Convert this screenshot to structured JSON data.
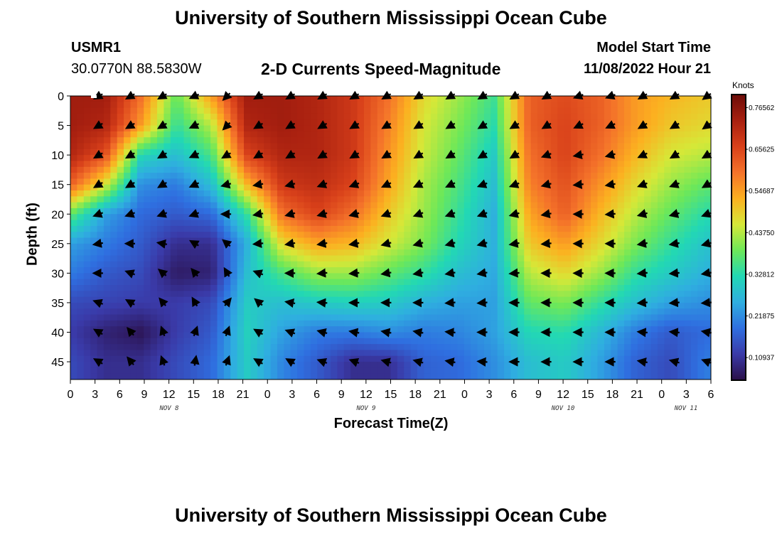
{
  "header": {
    "title": "University of Southern Mississippi Ocean Cube",
    "station_id": "USMR1",
    "coordinates": "30.0770N  88.5830W",
    "subtitle": "2-D Currents Speed-Magnitude",
    "model_start_label": "Model Start Time",
    "model_start_value": "11/08/2022 Hour 21"
  },
  "footer": {
    "title": "University of Southern Mississippi Ocean Cube"
  },
  "colors": {
    "scale": [
      "#2a0f48",
      "#3a3aa8",
      "#2f6fe0",
      "#2faee0",
      "#22d8b4",
      "#6ee858",
      "#d6e838",
      "#fcb020",
      "#f4722a",
      "#d8401a",
      "#a82010",
      "#6c0c08"
    ],
    "arrow": "#000000",
    "marker": "#ffffff"
  },
  "chart_data": {
    "type": "heatmap",
    "title": "2-D Currents Speed-Magnitude",
    "xlabel": "Forecast Time(Z)",
    "ylabel": "Depth (ft)",
    "x_tick_labels": [
      "0",
      "3",
      "6",
      "9",
      "12",
      "15",
      "18",
      "21",
      "0",
      "3",
      "6",
      "9",
      "12",
      "15",
      "18",
      "21",
      "0",
      "3",
      "6",
      "9",
      "12",
      "15",
      "18",
      "21",
      "0",
      "3",
      "6"
    ],
    "x_hours_range": [
      0,
      78
    ],
    "date_labels": [
      {
        "label": "NOV 8",
        "hour": 12
      },
      {
        "label": "NOV 9",
        "hour": 36
      },
      {
        "label": "NOV 10",
        "hour": 60
      },
      {
        "label": "NOV 11",
        "hour": 75
      }
    ],
    "y_ticks": [
      0,
      5,
      10,
      15,
      20,
      25,
      30,
      35,
      40,
      45
    ],
    "ylim": [
      0,
      48
    ],
    "colorbar": {
      "unit": "Knots",
      "range": [
        0.05,
        0.8
      ],
      "ticks": [
        "0.76562",
        "0.65625",
        "0.54687",
        "0.43750",
        "0.32812",
        "0.21875",
        "0.10937"
      ]
    },
    "column_hours": [
      0,
      4.3,
      8.6,
      12.9,
      17.2,
      21.5,
      25.8,
      30.1,
      34.4,
      38.7,
      43,
      47.3,
      51.6,
      55.9,
      60.2,
      64.5,
      68.8,
      73.1,
      77.4
    ],
    "row_depths": [
      0,
      5,
      10,
      15,
      20,
      25,
      30,
      35,
      40,
      45
    ],
    "speed_knots": [
      [
        0.74,
        0.74,
        0.6,
        0.38,
        0.55,
        0.74,
        0.74,
        0.72,
        0.68,
        0.6,
        0.48,
        0.42,
        0.35,
        0.62,
        0.65,
        0.62,
        0.55,
        0.52,
        0.5
      ],
      [
        0.74,
        0.72,
        0.55,
        0.34,
        0.44,
        0.72,
        0.74,
        0.72,
        0.68,
        0.58,
        0.46,
        0.4,
        0.33,
        0.62,
        0.66,
        0.62,
        0.55,
        0.5,
        0.48
      ],
      [
        0.72,
        0.64,
        0.32,
        0.28,
        0.36,
        0.66,
        0.72,
        0.72,
        0.68,
        0.56,
        0.45,
        0.38,
        0.3,
        0.6,
        0.66,
        0.6,
        0.52,
        0.46,
        0.44
      ],
      [
        0.62,
        0.46,
        0.22,
        0.2,
        0.28,
        0.52,
        0.68,
        0.7,
        0.66,
        0.54,
        0.43,
        0.36,
        0.28,
        0.58,
        0.64,
        0.56,
        0.48,
        0.42,
        0.38
      ],
      [
        0.38,
        0.24,
        0.18,
        0.16,
        0.18,
        0.34,
        0.6,
        0.66,
        0.6,
        0.5,
        0.42,
        0.34,
        0.26,
        0.54,
        0.62,
        0.52,
        0.44,
        0.38,
        0.33
      ],
      [
        0.24,
        0.2,
        0.16,
        0.1,
        0.1,
        0.26,
        0.48,
        0.54,
        0.52,
        0.46,
        0.4,
        0.32,
        0.26,
        0.5,
        0.55,
        0.48,
        0.4,
        0.34,
        0.29
      ],
      [
        0.2,
        0.16,
        0.14,
        0.07,
        0.08,
        0.28,
        0.36,
        0.42,
        0.42,
        0.38,
        0.34,
        0.28,
        0.25,
        0.44,
        0.48,
        0.42,
        0.34,
        0.3,
        0.26
      ],
      [
        0.14,
        0.13,
        0.12,
        0.12,
        0.14,
        0.3,
        0.28,
        0.3,
        0.31,
        0.3,
        0.26,
        0.24,
        0.24,
        0.38,
        0.4,
        0.34,
        0.28,
        0.24,
        0.22
      ],
      [
        0.12,
        0.08,
        0.06,
        0.12,
        0.16,
        0.31,
        0.24,
        0.2,
        0.2,
        0.22,
        0.2,
        0.21,
        0.24,
        0.32,
        0.33,
        0.27,
        0.2,
        0.16,
        0.18
      ],
      [
        0.14,
        0.1,
        0.1,
        0.14,
        0.18,
        0.3,
        0.21,
        0.16,
        0.1,
        0.1,
        0.17,
        0.18,
        0.22,
        0.28,
        0.3,
        0.24,
        0.17,
        0.14,
        0.2
      ]
    ],
    "arrow_hours": [
      3.5,
      7.4,
      11.3,
      15.2,
      19.1,
      23.0,
      26.9,
      30.8,
      34.7,
      38.6,
      42.5,
      46.4,
      50.3,
      54.2,
      58.1,
      62.0,
      65.9,
      69.8,
      73.7,
      77.6
    ],
    "arrow_depths": [
      0,
      5,
      10,
      15,
      20,
      25,
      30,
      35,
      40,
      45
    ],
    "arrow_direction_deg": [
      [
        240,
        240,
        240,
        245,
        225,
        240,
        240,
        240,
        240,
        240,
        240,
        240,
        240,
        240,
        240,
        250,
        250,
        240,
        240,
        235
      ],
      [
        240,
        240,
        240,
        245,
        225,
        240,
        240,
        240,
        240,
        240,
        240,
        240,
        240,
        240,
        240,
        245,
        245,
        240,
        240,
        235
      ],
      [
        240,
        240,
        240,
        245,
        240,
        240,
        240,
        240,
        240,
        240,
        240,
        240,
        240,
        240,
        250,
        260,
        255,
        245,
        240,
        240
      ],
      [
        240,
        240,
        240,
        245,
        255,
        260,
        255,
        250,
        250,
        245,
        245,
        245,
        250,
        250,
        255,
        265,
        260,
        250,
        250,
        240
      ],
      [
        250,
        250,
        250,
        250,
        270,
        260,
        255,
        255,
        255,
        250,
        250,
        250,
        250,
        255,
        260,
        270,
        265,
        255,
        255,
        250
      ],
      [
        260,
        270,
        280,
        300,
        310,
        265,
        260,
        260,
        260,
        255,
        255,
        255,
        255,
        260,
        265,
        270,
        270,
        260,
        260,
        255
      ],
      [
        270,
        290,
        310,
        320,
        330,
        290,
        270,
        265,
        265,
        260,
        260,
        260,
        260,
        265,
        270,
        270,
        270,
        265,
        265,
        260
      ],
      [
        290,
        300,
        320,
        330,
        40,
        310,
        280,
        275,
        270,
        270,
        270,
        265,
        265,
        270,
        270,
        270,
        270,
        265,
        265,
        265
      ],
      [
        300,
        320,
        340,
        20,
        20,
        300,
        290,
        285,
        280,
        280,
        280,
        275,
        270,
        270,
        270,
        270,
        270,
        275,
        275,
        280
      ],
      [
        300,
        320,
        340,
        10,
        20,
        300,
        300,
        290,
        290,
        285,
        285,
        280,
        275,
        270,
        270,
        270,
        270,
        280,
        285,
        290
      ]
    ]
  }
}
